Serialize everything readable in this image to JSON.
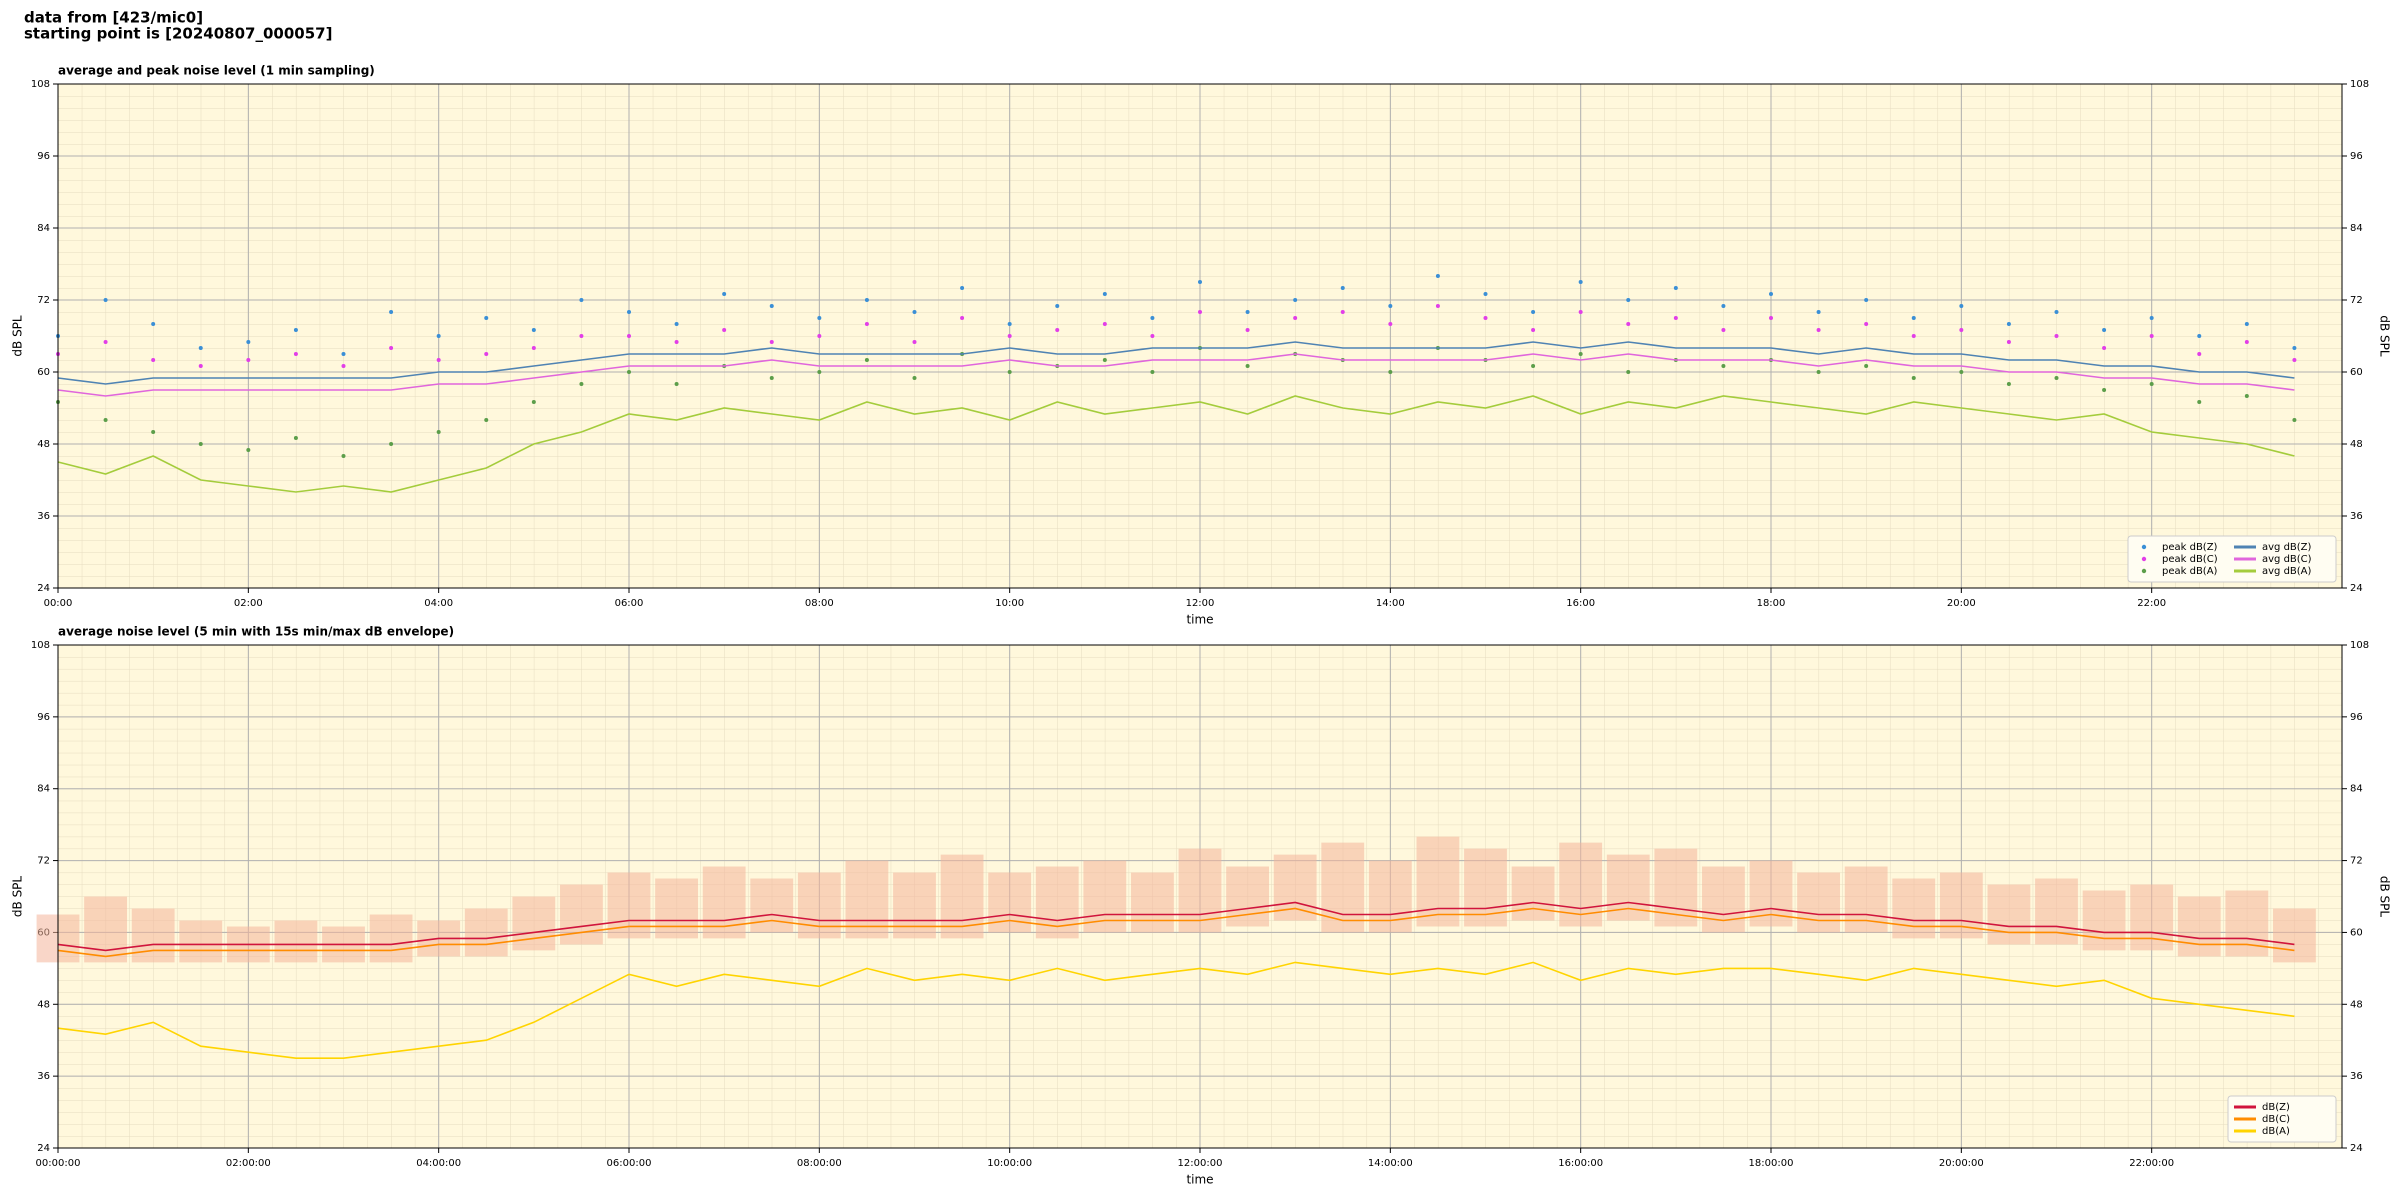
{
  "header": [
    "data from [423/mic0]",
    "starting point is [20240807_000057]"
  ],
  "chart_data": [
    {
      "type": "line",
      "title": "average and peak noise level (1 min sampling)",
      "xlabel": "time",
      "ylabel": "dB SPL",
      "xlim": [
        0,
        24
      ],
      "ylim": [
        24,
        108
      ],
      "yticks": [
        24,
        36,
        48,
        60,
        72,
        84,
        96,
        108
      ],
      "xticks": [
        {
          "value": 0,
          "label": "00:00"
        },
        {
          "value": 2,
          "label": "02:00"
        },
        {
          "value": 4,
          "label": "04:00"
        },
        {
          "value": 6,
          "label": "06:00"
        },
        {
          "value": 8,
          "label": "08:00"
        },
        {
          "value": 10,
          "label": "10:00"
        },
        {
          "value": 12,
          "label": "12:00"
        },
        {
          "value": 14,
          "label": "14:00"
        },
        {
          "value": 16,
          "label": "16:00"
        },
        {
          "value": 18,
          "label": "18:00"
        },
        {
          "value": 20,
          "label": "20:00"
        },
        {
          "value": 22,
          "label": "22:00"
        }
      ],
      "grid": true,
      "legend": "lower right",
      "legend_columns": 2,
      "x": [
        0,
        0.5,
        1,
        1.5,
        2,
        2.5,
        3,
        3.5,
        4,
        4.5,
        5,
        5.5,
        6,
        6.5,
        7,
        7.5,
        8,
        8.5,
        9,
        9.5,
        10,
        10.5,
        11,
        11.5,
        12,
        12.5,
        13,
        13.5,
        14,
        14.5,
        15,
        15.5,
        16,
        16.5,
        17,
        17.5,
        18,
        18.5,
        19,
        19.5,
        20,
        20.5,
        21,
        21.5,
        22,
        22.5,
        23,
        23.5
      ],
      "series": [
        {
          "name": "peak dB(Z)",
          "type": "scatter",
          "color": "#3a8fd6",
          "values": [
            66,
            72,
            68,
            64,
            65,
            67,
            63,
            70,
            66,
            69,
            67,
            72,
            70,
            68,
            73,
            71,
            69,
            72,
            70,
            74,
            68,
            71,
            73,
            69,
            75,
            70,
            72,
            74,
            71,
            76,
            73,
            70,
            75,
            72,
            74,
            71,
            73,
            70,
            72,
            69,
            71,
            68,
            70,
            67,
            69,
            66,
            68,
            64
          ]
        },
        {
          "name": "peak dB(C)",
          "type": "scatter",
          "color": "#e23ee8",
          "values": [
            63,
            65,
            62,
            61,
            62,
            63,
            61,
            64,
            62,
            63,
            64,
            66,
            66,
            65,
            67,
            65,
            66,
            68,
            65,
            69,
            66,
            67,
            68,
            66,
            70,
            67,
            69,
            70,
            68,
            71,
            69,
            67,
            70,
            68,
            69,
            67,
            69,
            67,
            68,
            66,
            67,
            65,
            66,
            64,
            66,
            63,
            65,
            62
          ]
        },
        {
          "name": "peak dB(A)",
          "type": "scatter",
          "color": "#5c9e4a",
          "values": [
            55,
            52,
            50,
            48,
            47,
            49,
            46,
            48,
            50,
            52,
            55,
            58,
            60,
            58,
            61,
            59,
            60,
            62,
            59,
            63,
            60,
            61,
            62,
            60,
            64,
            61,
            63,
            62,
            60,
            64,
            62,
            61,
            63,
            60,
            62,
            61,
            62,
            60,
            61,
            59,
            60,
            58,
            59,
            57,
            58,
            55,
            56,
            52
          ]
        },
        {
          "name": "avg dB(Z)",
          "type": "line",
          "color": "#4f83b3",
          "values": [
            59,
            58,
            59,
            59,
            59,
            59,
            59,
            59,
            60,
            60,
            61,
            62,
            63,
            63,
            63,
            64,
            63,
            63,
            63,
            63,
            64,
            63,
            63,
            64,
            64,
            64,
            65,
            64,
            64,
            64,
            64,
            65,
            64,
            65,
            64,
            64,
            64,
            63,
            64,
            63,
            63,
            62,
            62,
            61,
            61,
            60,
            60,
            59
          ]
        },
        {
          "name": "avg dB(C)",
          "type": "line",
          "color": "#e066dc",
          "values": [
            57,
            56,
            57,
            57,
            57,
            57,
            57,
            57,
            58,
            58,
            59,
            60,
            61,
            61,
            61,
            62,
            61,
            61,
            61,
            61,
            62,
            61,
            61,
            62,
            62,
            62,
            63,
            62,
            62,
            62,
            62,
            63,
            62,
            63,
            62,
            62,
            62,
            61,
            62,
            61,
            61,
            60,
            60,
            59,
            59,
            58,
            58,
            57
          ]
        },
        {
          "name": "avg dB(A)",
          "type": "line",
          "color": "#a4cc3c",
          "values": [
            45,
            43,
            46,
            42,
            41,
            40,
            41,
            40,
            42,
            44,
            48,
            50,
            53,
            52,
            54,
            53,
            52,
            55,
            53,
            54,
            52,
            55,
            53,
            54,
            55,
            53,
            56,
            54,
            53,
            55,
            54,
            56,
            53,
            55,
            54,
            56,
            55,
            54,
            53,
            55,
            54,
            53,
            52,
            53,
            50,
            49,
            48,
            46
          ]
        }
      ]
    },
    {
      "type": "line",
      "title": "average noise level (5 min with 15s min/max dB envelope)",
      "xlabel": "time",
      "ylabel": "dB SPL",
      "xlim": [
        0,
        24
      ],
      "ylim": [
        24,
        108
      ],
      "yticks": [
        24,
        36,
        48,
        60,
        72,
        84,
        96,
        108
      ],
      "xticks": [
        {
          "value": 0,
          "label": "00:00:00"
        },
        {
          "value": 2,
          "label": "02:00:00"
        },
        {
          "value": 4,
          "label": "04:00:00"
        },
        {
          "value": 6,
          "label": "06:00:00"
        },
        {
          "value": 8,
          "label": "08:00:00"
        },
        {
          "value": 10,
          "label": "10:00:00"
        },
        {
          "value": 12,
          "label": "12:00:00"
        },
        {
          "value": 14,
          "label": "14:00:00"
        },
        {
          "value": 16,
          "label": "16:00:00"
        },
        {
          "value": 18,
          "label": "18:00:00"
        },
        {
          "value": 20,
          "label": "20:00:00"
        },
        {
          "value": 22,
          "label": "22:00:00"
        }
      ],
      "grid": true,
      "legend": "lower right",
      "legend_columns": 1,
      "x": [
        0,
        0.5,
        1,
        1.5,
        2,
        2.5,
        3,
        3.5,
        4,
        4.5,
        5,
        5.5,
        6,
        6.5,
        7,
        7.5,
        8,
        8.5,
        9,
        9.5,
        10,
        10.5,
        11,
        11.5,
        12,
        12.5,
        13,
        13.5,
        14,
        14.5,
        15,
        15.5,
        16,
        16.5,
        17,
        17.5,
        18,
        18.5,
        19,
        19.5,
        20,
        20.5,
        21,
        21.5,
        22,
        22.5,
        23,
        23.5
      ],
      "band": {
        "color": "#f4b49a",
        "lower": [
          55,
          55,
          55,
          55,
          55,
          55,
          55,
          55,
          56,
          56,
          57,
          58,
          59,
          59,
          59,
          60,
          59,
          59,
          59,
          59,
          60,
          59,
          60,
          60,
          60,
          61,
          62,
          60,
          60,
          61,
          61,
          62,
          61,
          62,
          61,
          60,
          61,
          60,
          60,
          59,
          59,
          58,
          58,
          57,
          57,
          56,
          56,
          55
        ],
        "upper": [
          63,
          66,
          64,
          62,
          61,
          62,
          61,
          63,
          62,
          64,
          66,
          68,
          70,
          69,
          71,
          69,
          70,
          72,
          70,
          73,
          70,
          71,
          72,
          70,
          74,
          71,
          73,
          75,
          72,
          76,
          74,
          71,
          75,
          73,
          74,
          71,
          72,
          70,
          71,
          69,
          70,
          68,
          69,
          67,
          68,
          66,
          67,
          64
        ]
      },
      "series": [
        {
          "name": "dB(Z)",
          "type": "line",
          "color": "#d0143c",
          "values": [
            58,
            57,
            58,
            58,
            58,
            58,
            58,
            58,
            59,
            59,
            60,
            61,
            62,
            62,
            62,
            63,
            62,
            62,
            62,
            62,
            63,
            62,
            63,
            63,
            63,
            64,
            65,
            63,
            63,
            64,
            64,
            65,
            64,
            65,
            64,
            63,
            64,
            63,
            63,
            62,
            62,
            61,
            61,
            60,
            60,
            59,
            59,
            58
          ]
        },
        {
          "name": "dB(C)",
          "type": "line",
          "color": "#ff8c00",
          "values": [
            57,
            56,
            57,
            57,
            57,
            57,
            57,
            57,
            58,
            58,
            59,
            60,
            61,
            61,
            61,
            62,
            61,
            61,
            61,
            61,
            62,
            61,
            62,
            62,
            62,
            63,
            64,
            62,
            62,
            63,
            63,
            64,
            63,
            64,
            63,
            62,
            63,
            62,
            62,
            61,
            61,
            60,
            60,
            59,
            59,
            58,
            58,
            57
          ]
        },
        {
          "name": "dB(A)",
          "type": "line",
          "color": "#ffd400",
          "values": [
            44,
            43,
            45,
            41,
            40,
            39,
            39,
            40,
            41,
            42,
            45,
            49,
            53,
            51,
            53,
            52,
            51,
            54,
            52,
            53,
            52,
            54,
            52,
            53,
            54,
            53,
            55,
            54,
            53,
            54,
            53,
            55,
            52,
            54,
            53,
            54,
            54,
            53,
            52,
            54,
            53,
            52,
            51,
            52,
            49,
            48,
            47,
            46
          ]
        }
      ]
    }
  ]
}
